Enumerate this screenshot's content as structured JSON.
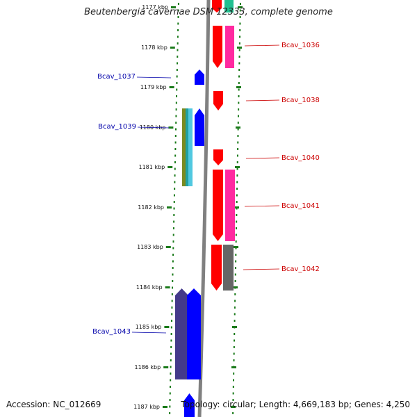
{
  "header": {
    "title": "Beutenbergia cavernae DSM 12333, complete genome"
  },
  "footer": {
    "accession": "Accession: NC_012669",
    "topology": "Topology: circular; Length: 4,669,183 bp; Genes: 4,250"
  },
  "colors": {
    "backbone": "#808080",
    "tick": "#1a7a1a",
    "reverse_strand": "#ff0000",
    "forward_strand": "#0000ff",
    "reverse_label": "#cc0000",
    "forward_label": "#0000aa"
  },
  "ruler": {
    "labels": [
      "1177 kbp",
      "1178 kbp",
      "1179 kbp",
      "1180 kbp",
      "1181 kbp",
      "1182 kbp",
      "1183 kbp",
      "1184 kbp",
      "1185 kbp",
      "1186 kbp",
      "1187 kbp"
    ]
  },
  "genes": {
    "labelled": [
      {
        "name": "Bcav_1036",
        "strand": "reverse"
      },
      {
        "name": "Bcav_1037",
        "strand": "forward"
      },
      {
        "name": "Bcav_1038",
        "strand": "reverse"
      },
      {
        "name": "Bcav_1039",
        "strand": "forward"
      },
      {
        "name": "Bcav_1040",
        "strand": "reverse"
      },
      {
        "name": "Bcav_1041",
        "strand": "reverse"
      },
      {
        "name": "Bcav_1042",
        "strand": "reverse"
      },
      {
        "name": "Bcav_1043",
        "strand": "forward"
      }
    ]
  }
}
